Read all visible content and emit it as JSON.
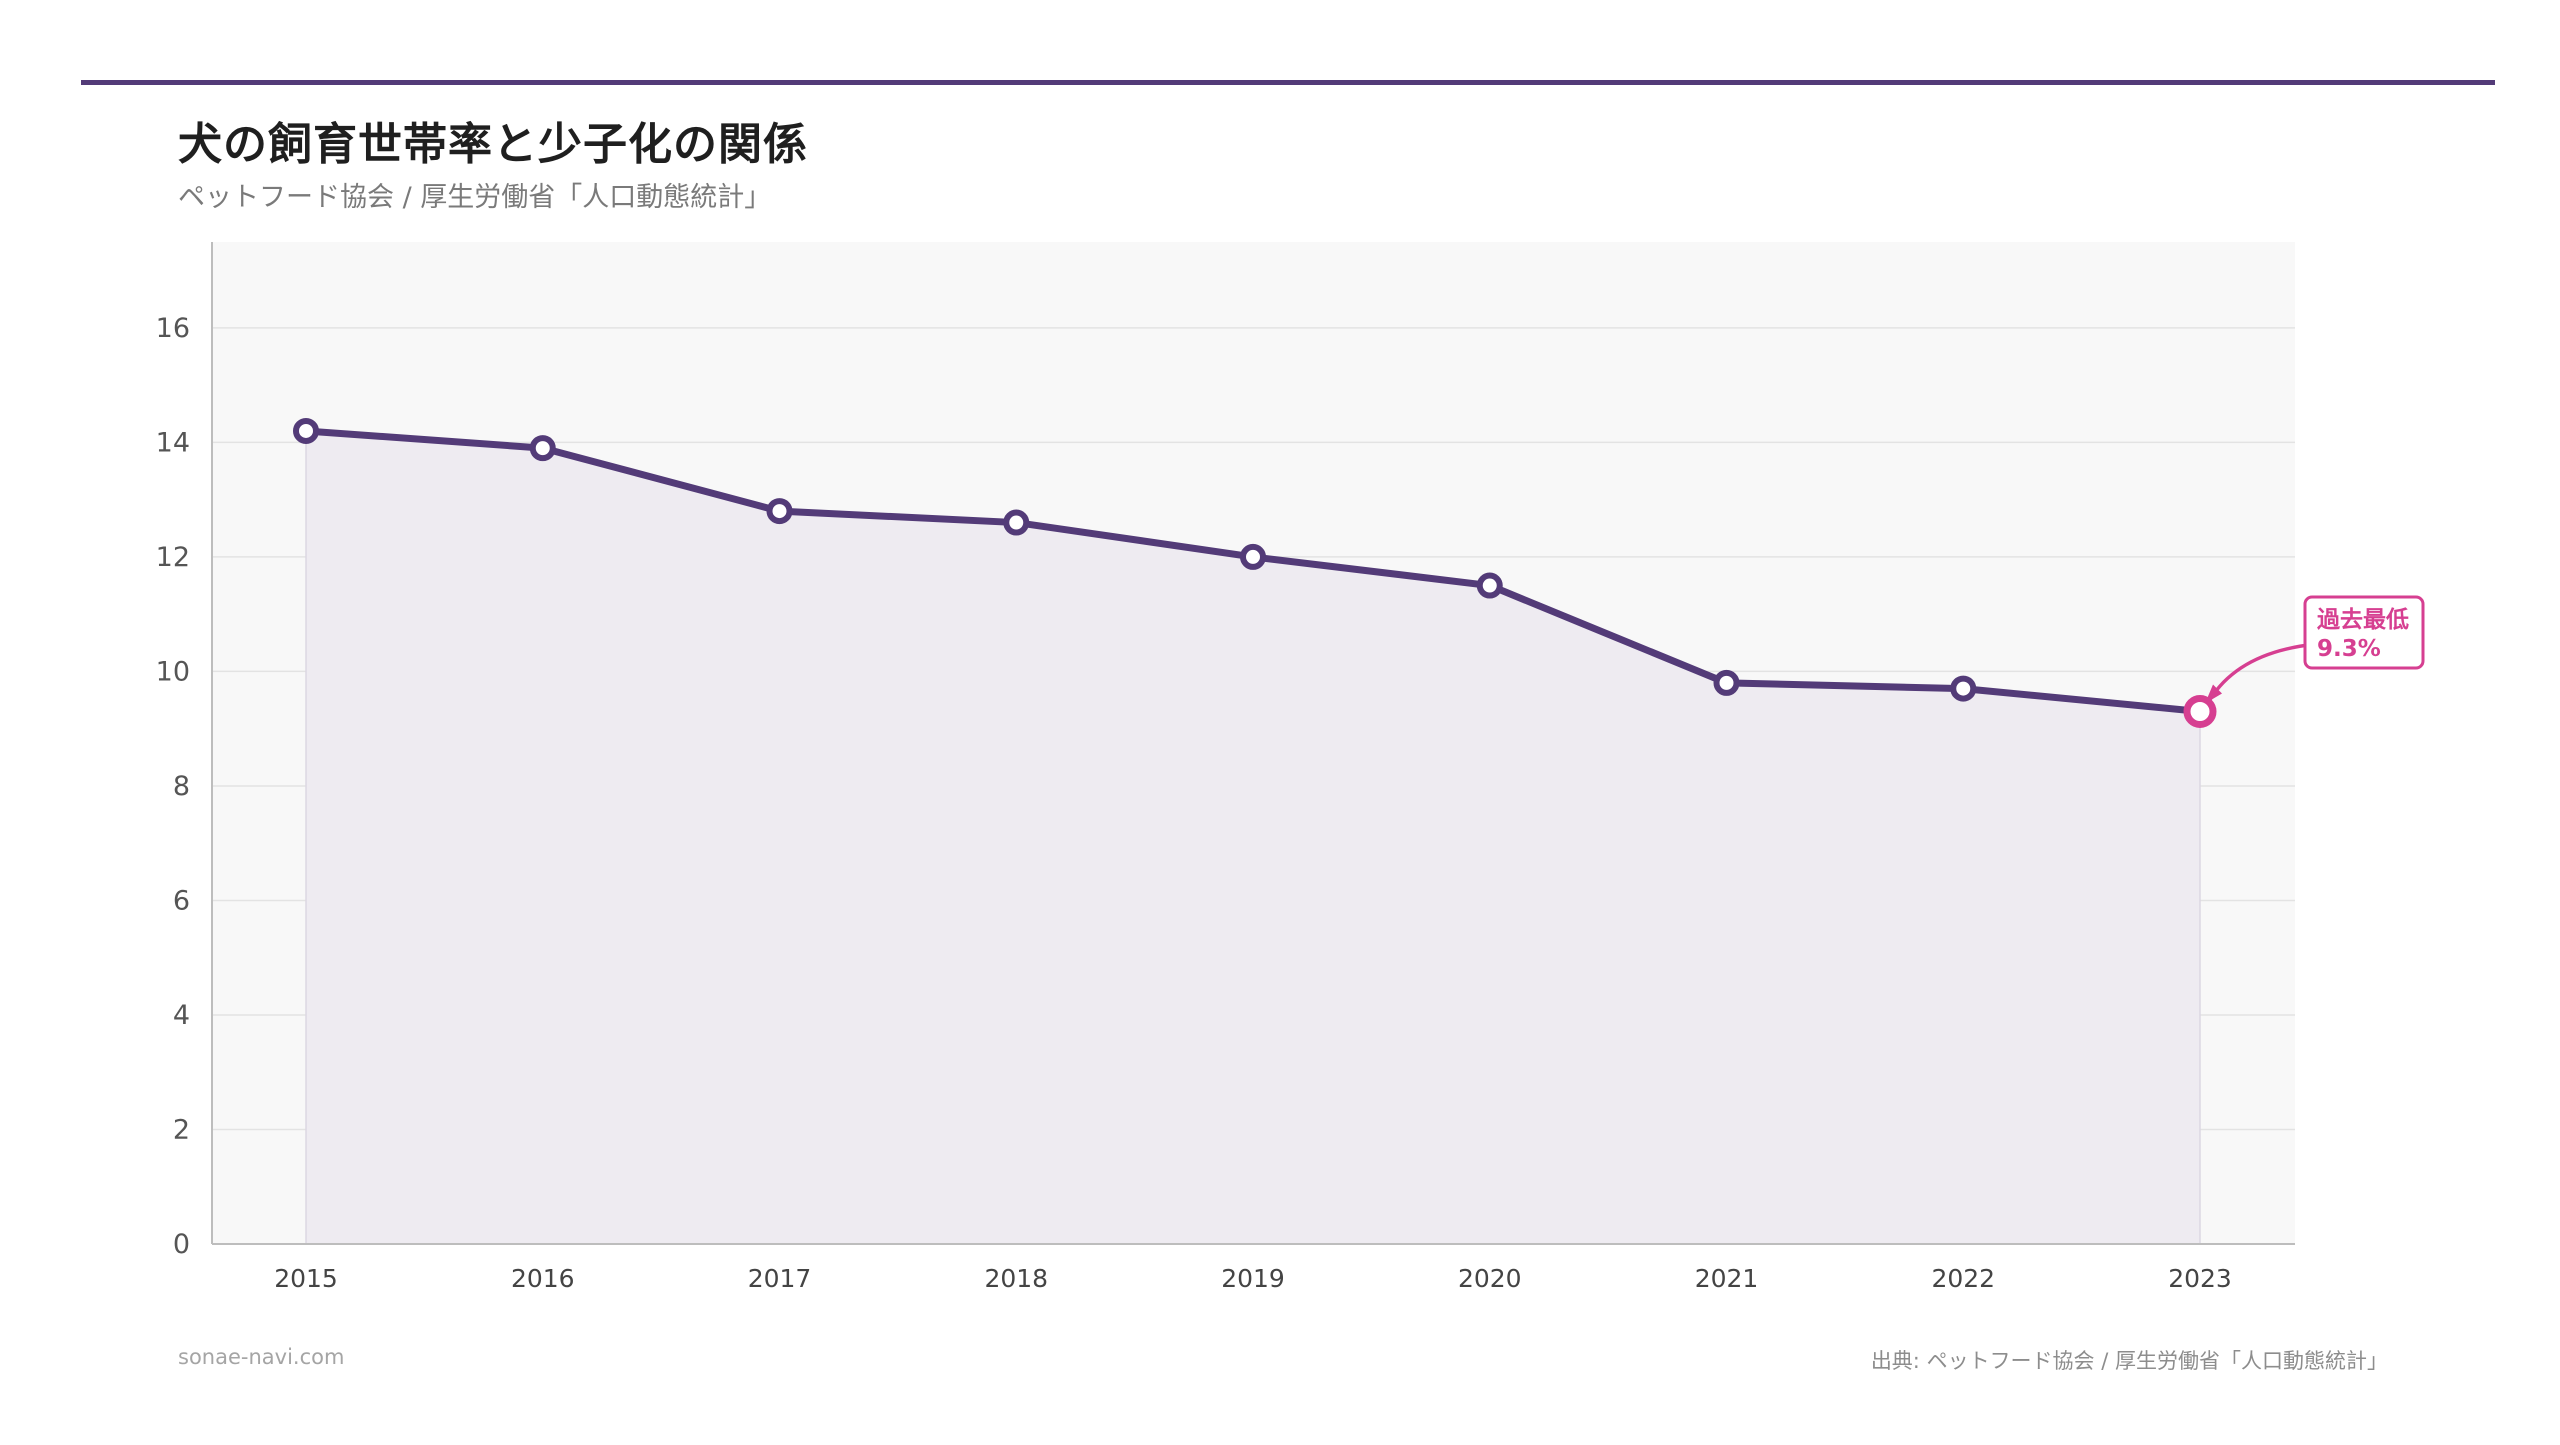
{
  "header": {
    "title": "犬の飼育世帯率と少子化の関係",
    "subtitle": "ペットフード協会 / 厚生労働省「人口動態統計」"
  },
  "footer": {
    "site": "sonae-navi.com",
    "source": "出典: ペットフード協会 / 厚生労働省「人口動態統計」"
  },
  "colors": {
    "line": "#533b78",
    "highlight": "#d63f91",
    "plot_bg": "#f8f8f8",
    "area_fill": "#eeebf1",
    "grid": "#e3e3e3"
  },
  "chart_data": {
    "type": "line",
    "title": "犬の飼育世帯率と少子化の関係",
    "subtitle": "ペットフード協会 / 厚生労働省「人口動態統計」",
    "xlabel": "",
    "ylabel": "",
    "categories": [
      "2015",
      "2016",
      "2017",
      "2018",
      "2019",
      "2020",
      "2021",
      "2022",
      "2023"
    ],
    "series": [
      {
        "name": "犬の飼育世帯率",
        "values": [
          14.2,
          13.9,
          12.8,
          12.6,
          12.0,
          11.5,
          9.8,
          9.7,
          9.3
        ]
      }
    ],
    "ylim": [
      0,
      17.5
    ],
    "yticks": [
      0,
      2,
      4,
      6,
      8,
      10,
      12,
      14,
      16
    ],
    "grid": true,
    "annotation": {
      "category": "2023",
      "value": 9.3,
      "line1": "過去最低",
      "line2": "9.3%"
    }
  }
}
